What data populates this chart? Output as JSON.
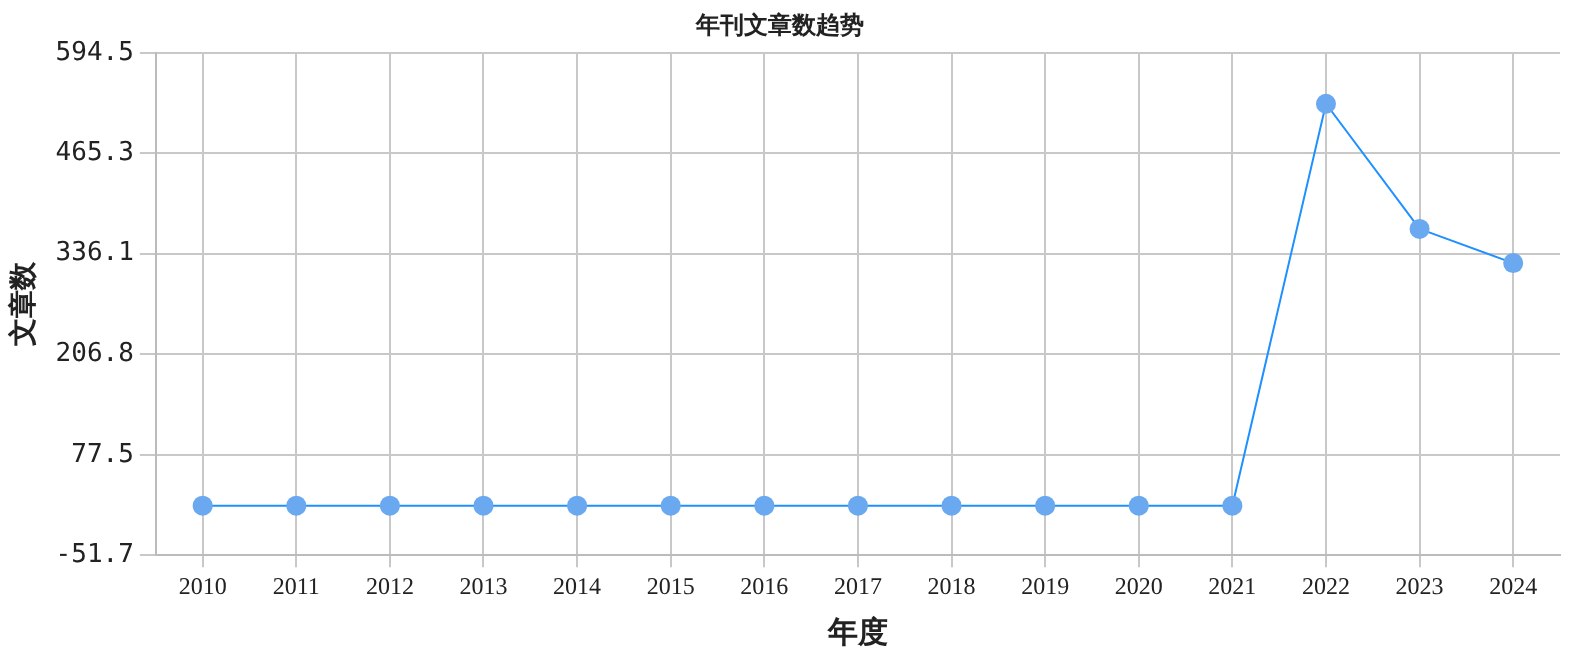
{
  "chart_data": {
    "type": "line",
    "title": "年刊文章数趋势",
    "xlabel": "年度",
    "ylabel": "文章数",
    "categories": [
      "2010",
      "2011",
      "2012",
      "2013",
      "2014",
      "2015",
      "2016",
      "2017",
      "2018",
      "2019",
      "2020",
      "2021",
      "2022",
      "2023",
      "2024"
    ],
    "series": [
      {
        "color": "#1e90ff",
        "values": [
          12,
          12,
          12,
          12,
          12,
          12,
          12,
          12,
          12,
          12,
          12,
          12,
          529,
          368,
          324
        ]
      }
    ],
    "ylim": [
      -51.7,
      594.5
    ],
    "yticks": [
      -51.7,
      77.5,
      206.8,
      336.1,
      465.3,
      594.5
    ],
    "grid": true,
    "legend": false,
    "marker": "circle",
    "line_style": "solid"
  }
}
